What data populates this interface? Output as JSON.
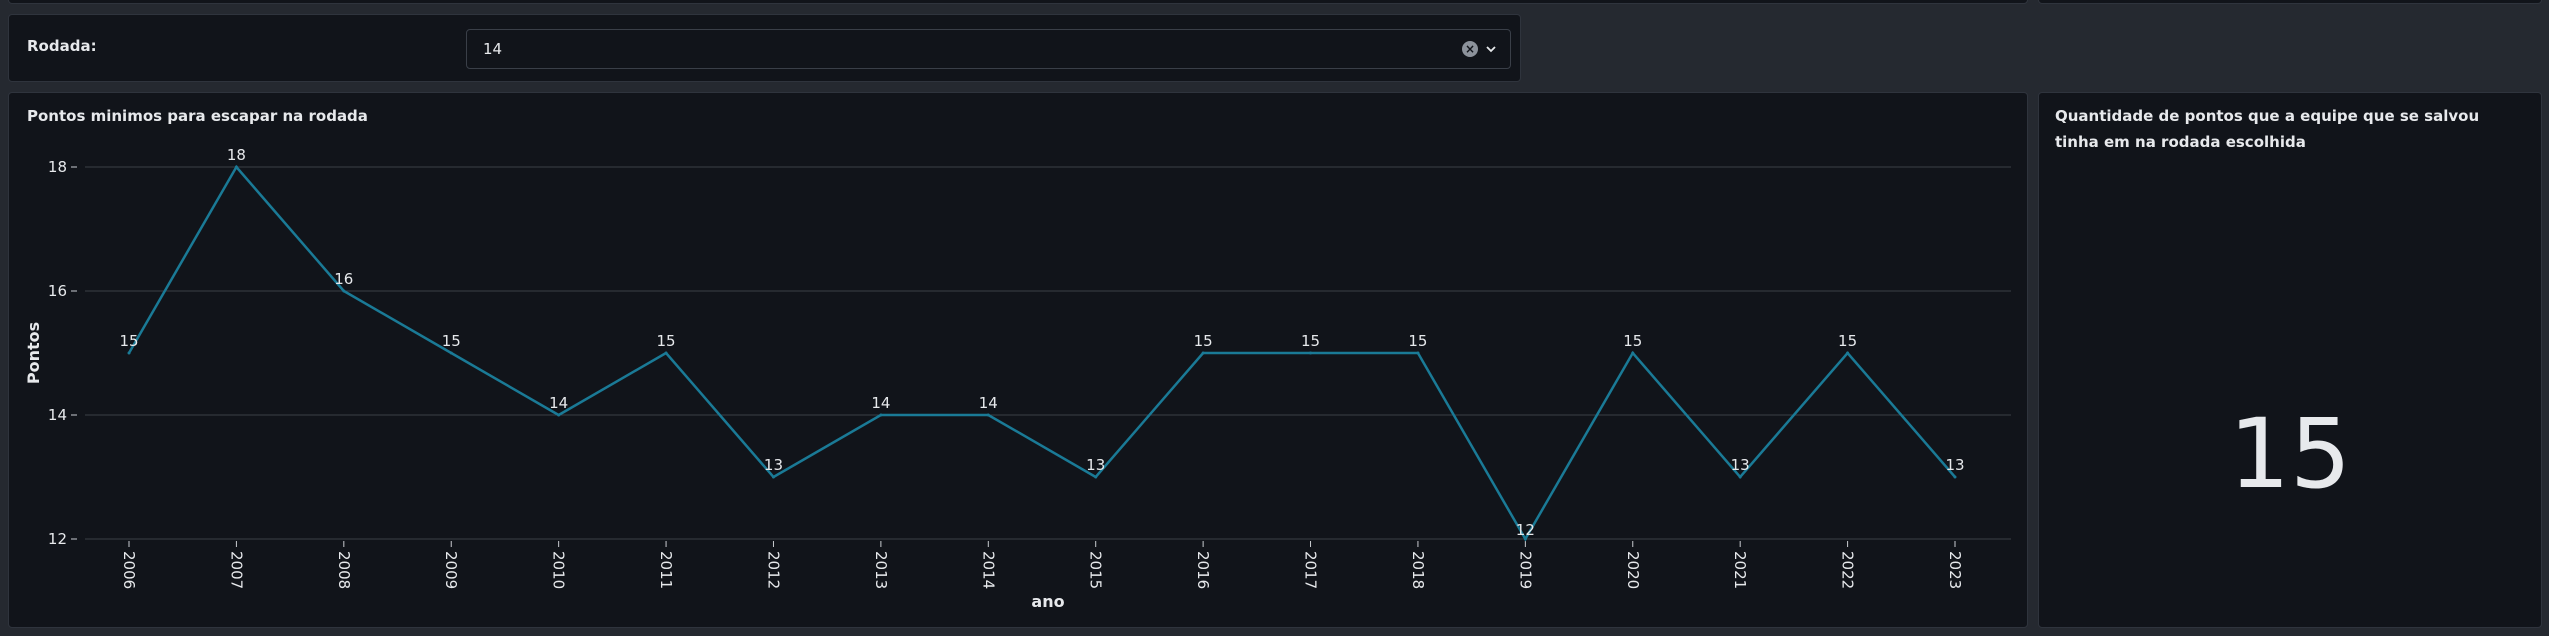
{
  "filter": {
    "label": "Rodada:",
    "value": "14"
  },
  "icons": {
    "clear": "clear-circle-icon",
    "dropdown": "chevron-down-icon"
  },
  "colors": {
    "line": "#1a7a96",
    "background": "#11141a",
    "text": "#e7e9ec"
  },
  "chart_panel": {
    "title": "Pontos minimos para escapar na rodada"
  },
  "metric_panel": {
    "title": "Quantidade de pontos que a equipe que se salvou tinha em na rodada escolhida",
    "value": "15"
  },
  "chart_data": {
    "type": "line",
    "title": "Pontos minimos para escapar na rodada",
    "xlabel": "ano",
    "ylabel": "Pontos",
    "x": [
      "2006",
      "2007",
      "2008",
      "2009",
      "2010",
      "2011",
      "2012",
      "2013",
      "2014",
      "2015",
      "2016",
      "2017",
      "2018",
      "2019",
      "2020",
      "2021",
      "2022",
      "2023"
    ],
    "values": [
      15,
      18,
      16,
      15,
      14,
      15,
      13,
      14,
      14,
      13,
      15,
      15,
      15,
      12,
      15,
      13,
      15,
      13
    ],
    "ylim": [
      12,
      18
    ],
    "yticks": [
      12,
      14,
      16,
      18
    ],
    "grid": true,
    "data_labels": true
  }
}
